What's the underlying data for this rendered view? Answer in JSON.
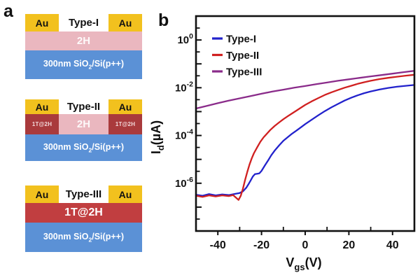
{
  "figure": {
    "panel_a_label": "a",
    "panel_b_label": "b"
  },
  "panel_a": {
    "devices": [
      {
        "title": "Type-I",
        "electrode_left": "Au",
        "electrode_right": "Au",
        "channel": "2H",
        "substrate": {
          "pre": "300nm SiO",
          "sub": "2",
          "post": "/Si(p++)"
        }
      },
      {
        "title": "Type-II",
        "electrode_left": "Au",
        "electrode_right": "Au",
        "contact_left": "1T@2H",
        "channel": "2H",
        "contact_right": "1T@2H",
        "substrate": {
          "pre": "300nm SiO",
          "sub": "2",
          "post": "/Si(p++)"
        }
      },
      {
        "title": "Type-III",
        "electrode_left": "Au",
        "electrode_right": "Au",
        "channel": "1T@2H",
        "substrate": {
          "pre": "300nm SiO",
          "sub": "2",
          "post": "/Si(p++)"
        }
      }
    ],
    "colors": {
      "gold_electrode": "#F2C11E",
      "pink_2h": "#EAB7BF",
      "dark_red_1t2h": "#A93A3C",
      "red_1t2h": "#C13E40",
      "blue_substrate": "#5B91D6"
    }
  },
  "chart_data": {
    "type": "line",
    "title": "",
    "xlabel": {
      "pre": "V",
      "sub": "gs",
      "post": "(V)"
    },
    "ylabel": {
      "pre": "I",
      "sub": "d",
      "post": "(µA)"
    },
    "xlim": [
      -50,
      50
    ],
    "ylog_lim_exp": [
      -8,
      1
    ],
    "y_scale": "log",
    "grid": false,
    "legend_position": "top-left",
    "axis_color": "#111111",
    "xticks_major": [
      -40,
      -20,
      0,
      20,
      40
    ],
    "xticks_minor": [
      -30,
      -10,
      10,
      30
    ],
    "ytick_label_exponents": [
      0,
      -2,
      -4,
      -6
    ],
    "series": [
      {
        "name": "Type-I",
        "color": "#2222CC",
        "points": [
          [
            -50,
            3.3e-07
          ],
          [
            -47,
            3e-07
          ],
          [
            -44,
            3.5e-07
          ],
          [
            -41,
            3.1e-07
          ],
          [
            -38,
            3.4e-07
          ],
          [
            -35,
            3.2e-07
          ],
          [
            -32,
            3.6e-07
          ],
          [
            -30,
            3.9e-07
          ],
          [
            -28.5,
            4.6e-07
          ],
          [
            -27,
            6.5e-07
          ],
          [
            -26,
            9e-07
          ],
          [
            -25,
            1.3e-06
          ],
          [
            -24,
            1.9e-06
          ],
          [
            -23,
            2.4e-06
          ],
          [
            -22,
            2.5e-06
          ],
          [
            -21,
            2.6e-06
          ],
          [
            -20,
            3.3e-06
          ],
          [
            -18.5,
            5.5e-06
          ],
          [
            -17,
            9e-06
          ],
          [
            -15.5,
            1.5e-05
          ],
          [
            -14,
            2.3e-05
          ],
          [
            -12,
            3.8e-05
          ],
          [
            -10,
            6e-05
          ],
          [
            -8,
            8.5e-05
          ],
          [
            -6,
            0.00012
          ],
          [
            -4,
            0.00016
          ],
          [
            -2,
            0.00022
          ],
          [
            0,
            0.0003
          ],
          [
            3,
            0.00046
          ],
          [
            6,
            0.0007
          ],
          [
            9,
            0.00105
          ],
          [
            12,
            0.0015
          ],
          [
            15,
            0.0021
          ],
          [
            18,
            0.0029
          ],
          [
            21,
            0.0038
          ],
          [
            24,
            0.0048
          ],
          [
            27,
            0.0059
          ],
          [
            30,
            0.007
          ],
          [
            34,
            0.0084
          ],
          [
            38,
            0.0098
          ],
          [
            42,
            0.011
          ],
          [
            46,
            0.012
          ],
          [
            50,
            0.013
          ]
        ]
      },
      {
        "name": "Type-II",
        "color": "#D02020",
        "points": [
          [
            -50,
            3e-07
          ],
          [
            -47,
            2.7e-07
          ],
          [
            -44,
            3.1e-07
          ],
          [
            -41,
            2.8e-07
          ],
          [
            -38,
            3.1e-07
          ],
          [
            -35,
            2.9e-07
          ],
          [
            -33,
            3.2e-07
          ],
          [
            -31.5,
            2.4e-07
          ],
          [
            -30.5,
            2e-07
          ],
          [
            -29.5,
            3e-07
          ],
          [
            -28.5,
            6e-07
          ],
          [
            -27.5,
            1.4e-06
          ],
          [
            -26.5,
            3e-06
          ],
          [
            -25.5,
            6e-06
          ],
          [
            -24.5,
            1.1e-05
          ],
          [
            -23.5,
            1.8e-05
          ],
          [
            -22,
            3.2e-05
          ],
          [
            -20.5,
            5.5e-05
          ],
          [
            -19,
            8.5e-05
          ],
          [
            -17.5,
            0.00012
          ],
          [
            -16,
            0.00017
          ],
          [
            -14,
            0.00025
          ],
          [
            -12,
            0.00035
          ],
          [
            -10,
            0.00048
          ],
          [
            -8,
            0.00064
          ],
          [
            -6,
            0.00084
          ],
          [
            -4,
            0.0011
          ],
          [
            -2,
            0.00145
          ],
          [
            0,
            0.0019
          ],
          [
            3,
            0.0027
          ],
          [
            6,
            0.0037
          ],
          [
            9,
            0.005
          ],
          [
            12,
            0.0064
          ],
          [
            15,
            0.008
          ],
          [
            18,
            0.01
          ],
          [
            21,
            0.012
          ],
          [
            24,
            0.0145
          ],
          [
            27,
            0.017
          ],
          [
            30,
            0.0195
          ],
          [
            34,
            0.023
          ],
          [
            38,
            0.026
          ],
          [
            42,
            0.029
          ],
          [
            46,
            0.032
          ],
          [
            50,
            0.035
          ]
        ]
      },
      {
        "name": "Type-III",
        "color": "#8A2B8A",
        "points": [
          [
            -50,
            0.00135
          ],
          [
            -45,
            0.00175
          ],
          [
            -40,
            0.00225
          ],
          [
            -35,
            0.0029
          ],
          [
            -30,
            0.0036
          ],
          [
            -25,
            0.0045
          ],
          [
            -20,
            0.0056
          ],
          [
            -15,
            0.0069
          ],
          [
            -10,
            0.0083
          ],
          [
            -5,
            0.01
          ],
          [
            0,
            0.0118
          ],
          [
            5,
            0.014
          ],
          [
            10,
            0.0165
          ],
          [
            15,
            0.0195
          ],
          [
            20,
            0.0225
          ],
          [
            25,
            0.026
          ],
          [
            30,
            0.03
          ],
          [
            35,
            0.034
          ],
          [
            40,
            0.039
          ],
          [
            45,
            0.045
          ],
          [
            50,
            0.051
          ]
        ]
      }
    ]
  }
}
